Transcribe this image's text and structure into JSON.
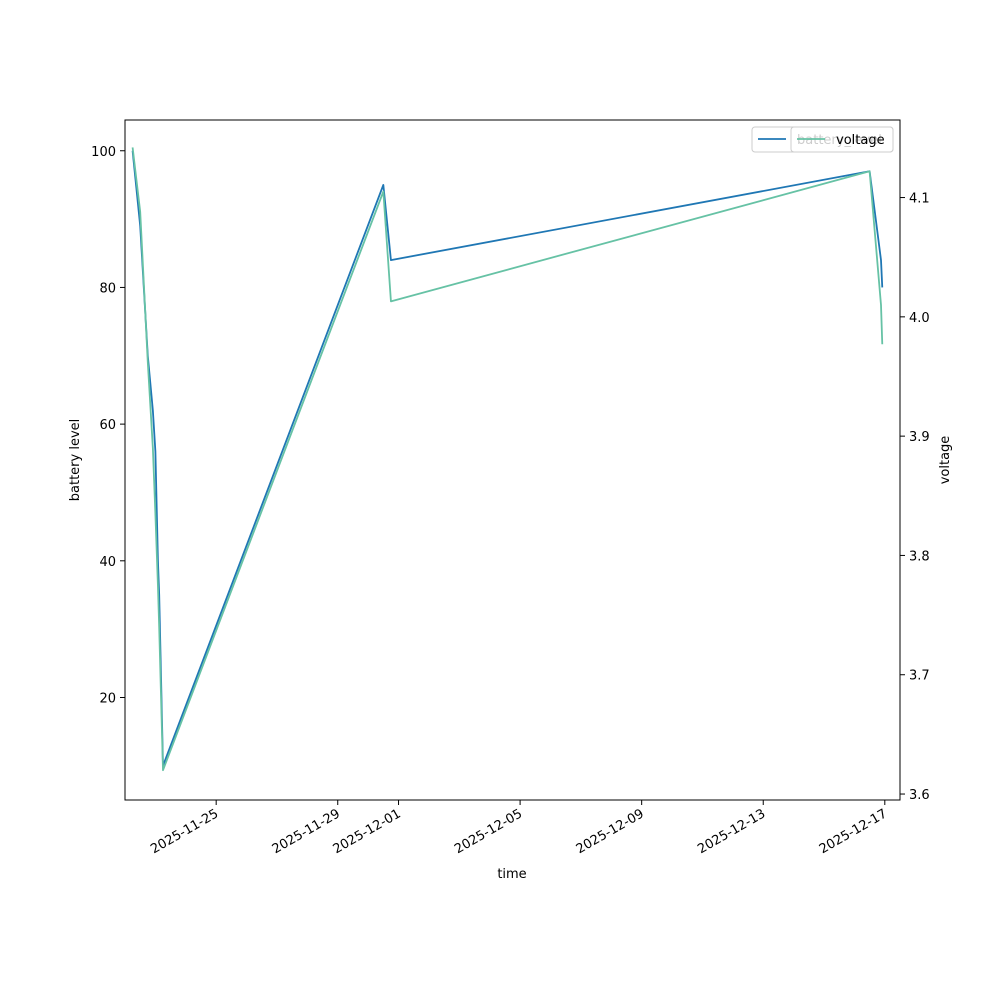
{
  "chart_data": {
    "type": "line",
    "title": "",
    "xlabel": "time",
    "ylabel_left": "battery level",
    "ylabel_right": "voltage",
    "x_ticks": [
      "2025-11-25",
      "2025-11-29",
      "2025-12-01",
      "2025-12-05",
      "2025-12-09",
      "2025-12-13",
      "2025-12-17"
    ],
    "y_left_ticks": [
      20,
      40,
      60,
      80,
      100
    ],
    "y_right_ticks": [
      3.6,
      3.7,
      3.8,
      3.9,
      4.0,
      4.1
    ],
    "y_left_lim": [
      5,
      104.5
    ],
    "y_right_lim": [
      3.595,
      4.165
    ],
    "x_lim": [
      "2025-11-22T00:00",
      "2025-12-17T12:00"
    ],
    "grid": false,
    "legend_position": "upper-right",
    "series": [
      {
        "name": "battery_level",
        "axis": "left",
        "color": "#1f77b4",
        "points": [
          [
            "2025-11-22T06:00",
            100
          ],
          [
            "2025-11-22T12:00",
            89
          ],
          [
            "2025-11-22T18:00",
            70
          ],
          [
            "2025-11-22T22:00",
            62
          ],
          [
            "2025-11-23T00:00",
            56
          ],
          [
            "2025-11-23T02:00",
            40
          ],
          [
            "2025-11-23T03:00",
            35
          ],
          [
            "2025-11-23T06:00",
            10
          ],
          [
            "2025-11-30T12:00",
            95
          ],
          [
            "2025-11-30T18:00",
            84
          ],
          [
            "2025-12-16T12:00",
            97
          ],
          [
            "2025-12-16T21:00",
            84
          ],
          [
            "2025-12-16T22:00",
            80
          ]
        ]
      },
      {
        "name": "voltage",
        "axis": "right",
        "color": "#66c2a5",
        "points": [
          [
            "2025-11-22T06:00",
            4.142
          ],
          [
            "2025-11-22T12:00",
            4.088
          ],
          [
            "2025-11-22T18:00",
            3.962
          ],
          [
            "2025-11-22T22:00",
            3.89
          ],
          [
            "2025-11-23T00:00",
            3.835
          ],
          [
            "2025-11-23T02:00",
            3.775
          ],
          [
            "2025-11-23T03:00",
            3.74
          ],
          [
            "2025-11-23T06:00",
            3.62
          ],
          [
            "2025-11-30T12:00",
            4.105
          ],
          [
            "2025-11-30T18:00",
            4.013
          ],
          [
            "2025-12-16T12:00",
            4.122
          ],
          [
            "2025-12-16T21:00",
            4.01
          ],
          [
            "2025-12-16T22:00",
            3.977
          ]
        ]
      }
    ],
    "legend": [
      "battery_level",
      "voltage"
    ]
  }
}
